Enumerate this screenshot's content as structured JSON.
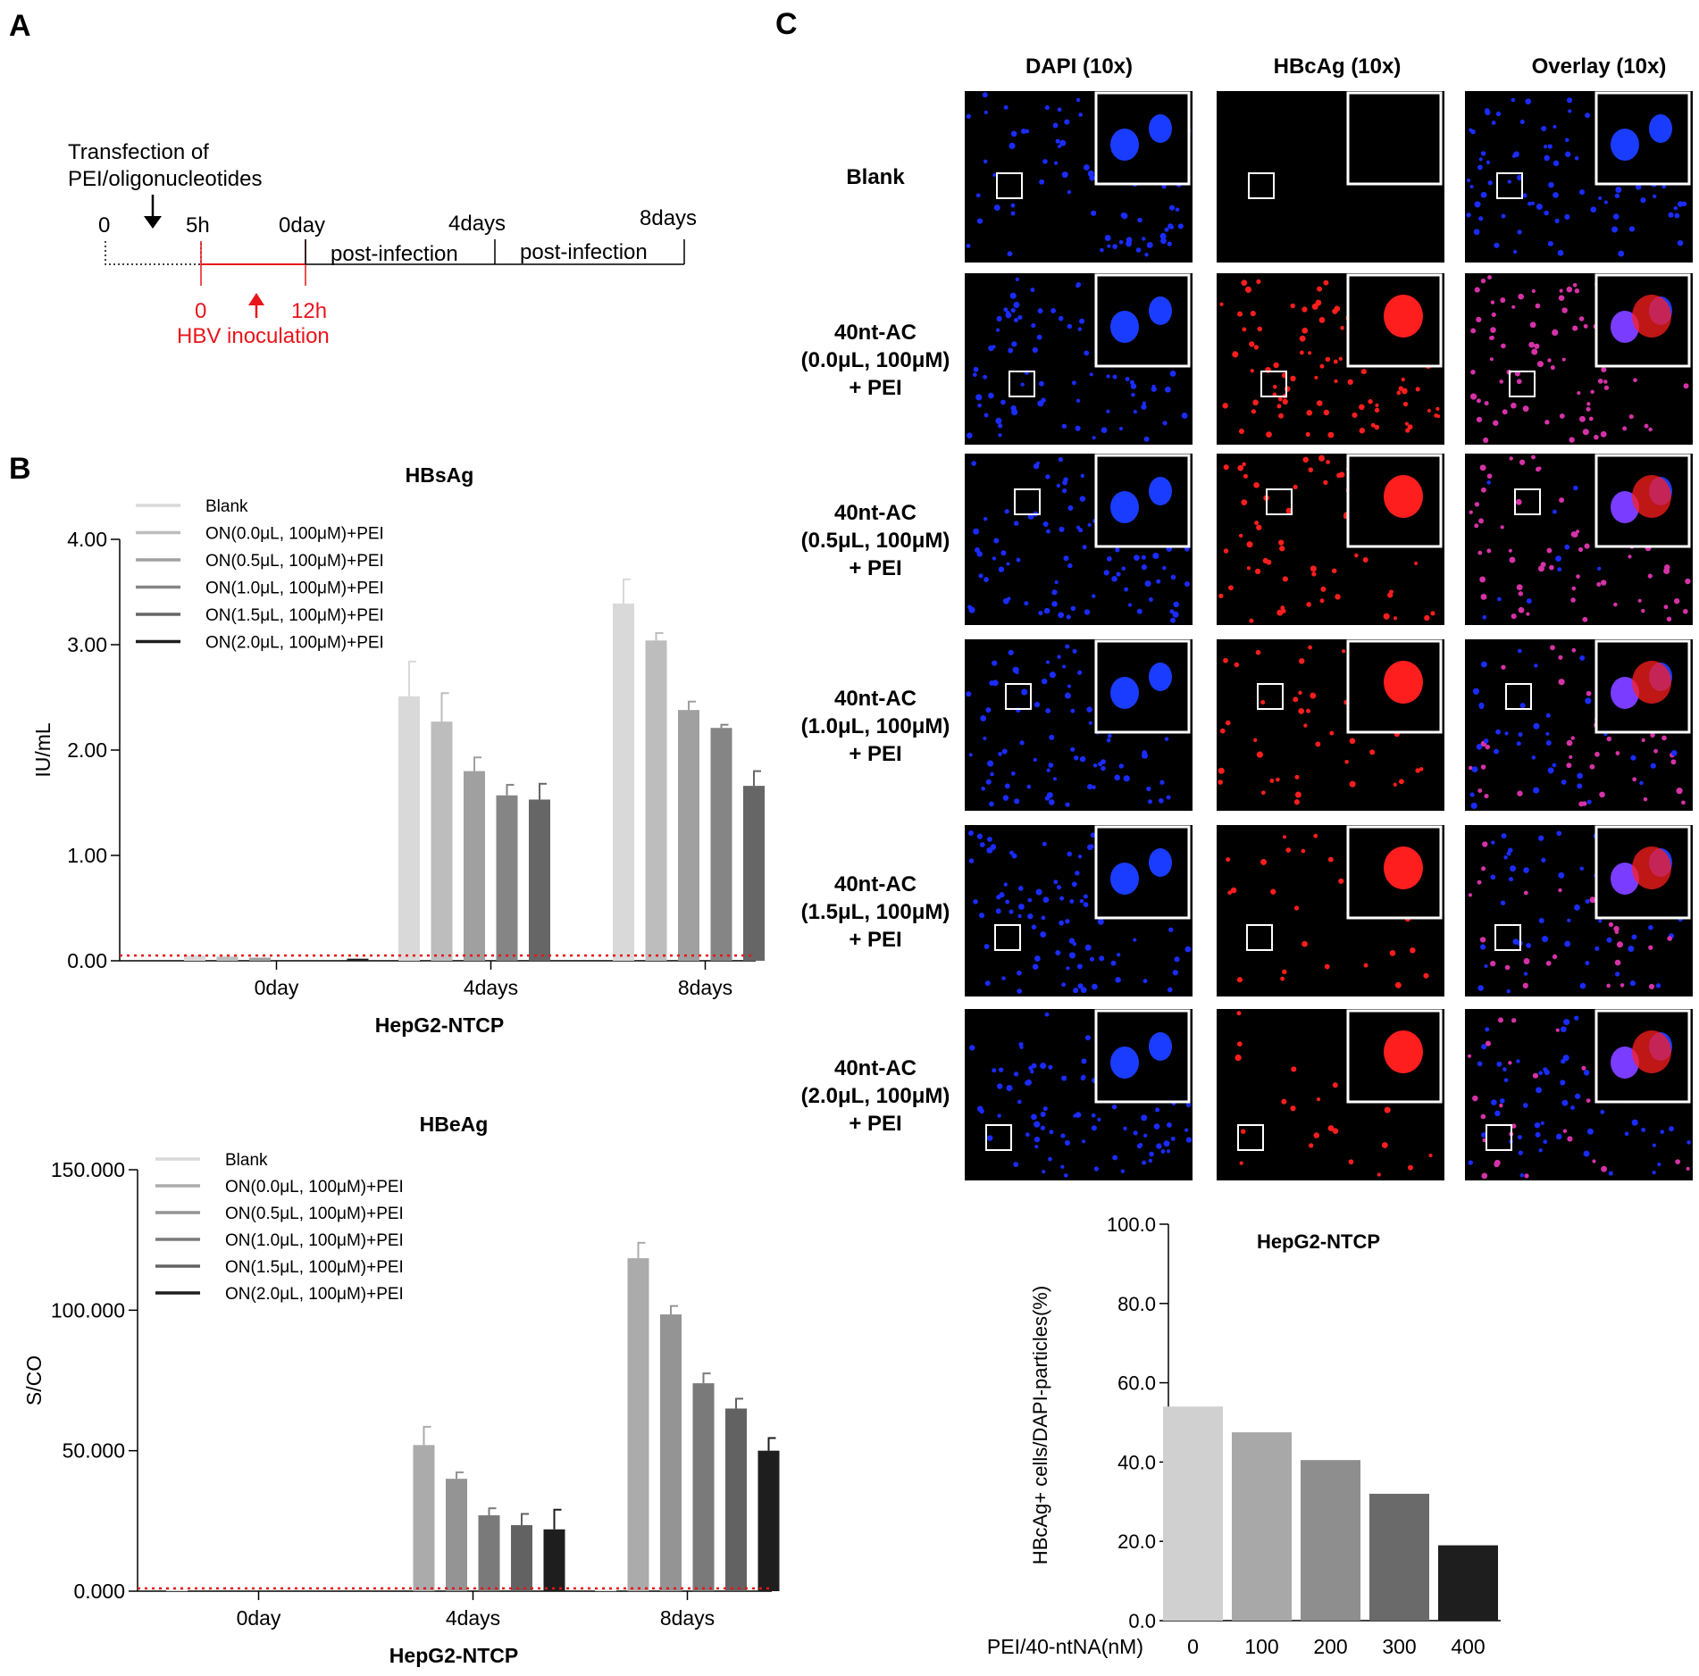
{
  "panel_letters": {
    "a": "A",
    "b": "B",
    "c": "C"
  },
  "timeline": {
    "line1": "Transfection of",
    "line2": "PEI/oligonucleotides",
    "t0": "0",
    "t5h": "5h",
    "t0day": "0day",
    "t4days": "4days",
    "t8days": "8days",
    "post1": "post-infection",
    "post2": "post-infection",
    "red0": "0",
    "red12h": "12h",
    "hbv": "HBV inoculation",
    "colors": {
      "black": "#000000",
      "red": "#e8141b"
    }
  },
  "micro": {
    "col_headers": [
      "DAPI (10x)",
      "HBcAg (10x)",
      "Overlay (10x)"
    ],
    "rows": [
      {
        "label": [
          "Blank"
        ]
      },
      {
        "label": [
          "40nt-AC",
          "(0.0μL, 100μM)",
          "+ PEI"
        ]
      },
      {
        "label": [
          "40nt-AC",
          "(0.5μL, 100μM)",
          "+ PEI"
        ]
      },
      {
        "label": [
          "40nt-AC",
          "(1.0μL, 100μM)",
          "+ PEI"
        ]
      },
      {
        "label": [
          "40nt-AC",
          "(1.5μL, 100μM)",
          "+ PEI"
        ]
      },
      {
        "label": [
          "40nt-AC",
          "(2.0μL, 100μM)",
          "+ PEI"
        ]
      }
    ],
    "colors": {
      "dapi": "#1a2cff",
      "hbc": "#ff1e1e",
      "overlay": "#ff3a8a"
    }
  },
  "chart_data": [
    {
      "type": "bar",
      "title": "HBsAg",
      "xlabel": "HepG2-NTCP",
      "ylabel": "IU/mL",
      "ylim": [
        0,
        4
      ],
      "yticks": [
        "0.00",
        "1.00",
        "2.00",
        "3.00",
        "4.00"
      ],
      "categories": [
        "0day",
        "4days",
        "8days"
      ],
      "cutoff": 0.05,
      "legend_position": "top-left",
      "series": [
        {
          "name": "Blank",
          "color": "#d9d9d9",
          "values": [
            0.05,
            2.51,
            3.39
          ],
          "errors": [
            0,
            0.33,
            0.23
          ]
        },
        {
          "name": "ON(0.0μL, 100μM)+PEI",
          "color": "#bdbdbd",
          "values": [
            0.04,
            2.27,
            3.04
          ],
          "errors": [
            0,
            0.27,
            0.07
          ]
        },
        {
          "name": "ON(0.5μL, 100μM)+PEI",
          "color": "#a0a0a0",
          "values": [
            0.03,
            1.8,
            2.38
          ],
          "errors": [
            0,
            0.13,
            0.08
          ]
        },
        {
          "name": "ON(1.0μL, 100μM)+PEI",
          "color": "#858585",
          "values": [
            0.0,
            1.57,
            2.21
          ],
          "errors": [
            0,
            0.1,
            0.03
          ]
        },
        {
          "name": "ON(1.5μL, 100μM)+PEI",
          "color": "#666666",
          "values": [
            0.0,
            1.53,
            1.66
          ],
          "errors": [
            0,
            0.15,
            0.14
          ]
        },
        {
          "name": "ON(2.0μL, 100μM)+PEI",
          "color": "#1e1e1e",
          "values": [
            0.02,
            0,
            0
          ],
          "errors": [
            0,
            0,
            0
          ]
        }
      ]
    },
    {
      "type": "bar",
      "title": "HBeAg",
      "xlabel": "HepG2-NTCP",
      "ylabel": "S/CO",
      "ylim": [
        0,
        150
      ],
      "yticks": [
        "0.000",
        "50.000",
        "100.000",
        "150.000"
      ],
      "categories": [
        "0day",
        "4days",
        "8days"
      ],
      "cutoff": 1,
      "legend_position": "top-left",
      "series": [
        {
          "name": "Blank",
          "color": "#d9d9d9",
          "values": [
            0.5,
            0,
            0.5
          ],
          "errors": [
            0,
            0,
            0
          ]
        },
        {
          "name": "ON(0.0μL, 100μM)+PEI",
          "color": "#ababab",
          "values": [
            0,
            52,
            118.5
          ],
          "errors": [
            0,
            6.5,
            5.5
          ]
        },
        {
          "name": "ON(0.5μL, 100μM)+PEI",
          "color": "#949494",
          "values": [
            0,
            40,
            98.5
          ],
          "errors": [
            0,
            2.3,
            3
          ]
        },
        {
          "name": "ON(1.0μL, 100μM)+PEI",
          "color": "#7a7a7a",
          "values": [
            0,
            27,
            74
          ],
          "errors": [
            0,
            2.5,
            3.5
          ]
        },
        {
          "name": "ON(1.5μL, 100μM)+PEI",
          "color": "#626262",
          "values": [
            0,
            23.5,
            65
          ],
          "errors": [
            0,
            4,
            3.5
          ]
        },
        {
          "name": "ON(2.0μL, 100μM)+PEI",
          "color": "#1e1e1e",
          "values": [
            0,
            22,
            50
          ],
          "errors": [
            0,
            7,
            4.5
          ]
        }
      ]
    },
    {
      "type": "bar",
      "title": "HepG2-NTCP",
      "xlabel": "PEI/40-ntNA(nM)",
      "ylabel": "HBcAg+ cells/DAPI-particles(%)",
      "ylim": [
        0,
        100
      ],
      "yticks": [
        "0.0",
        "20.0",
        "40.0",
        "60.0",
        "80.0",
        "100.0"
      ],
      "categories": [
        "0",
        "100",
        "200",
        "300",
        "400"
      ],
      "values": [
        54,
        47.5,
        40.5,
        32,
        19
      ],
      "colors": [
        "#d0d0d0",
        "#a8a8a8",
        "#8e8e8e",
        "#6a6a6a",
        "#1e1e1e"
      ]
    }
  ]
}
